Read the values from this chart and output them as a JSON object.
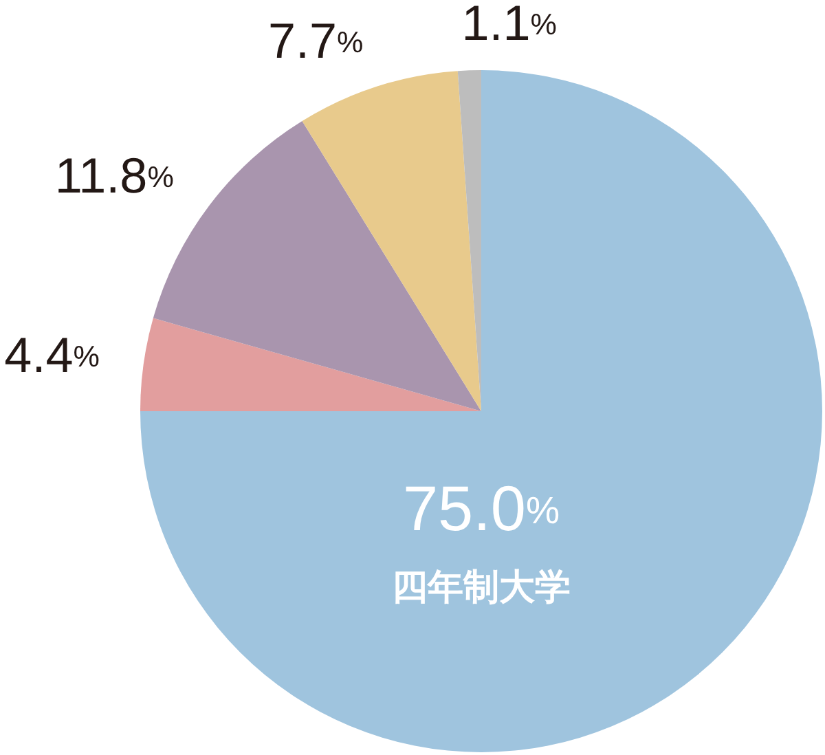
{
  "chart_data": {
    "type": "pie",
    "categories": [
      "四年制大学",
      null,
      null,
      null,
      null
    ],
    "values": [
      75.0,
      4.4,
      11.8,
      7.7,
      1.1
    ],
    "colors": [
      "#9fc4de",
      "#e29e9e",
      "#a995ae",
      "#e8ca8c",
      "#bdbdbd"
    ],
    "value_labels": [
      "75.0%",
      "4.4%",
      "11.8%",
      "7.7%",
      "1.1%"
    ]
  }
}
